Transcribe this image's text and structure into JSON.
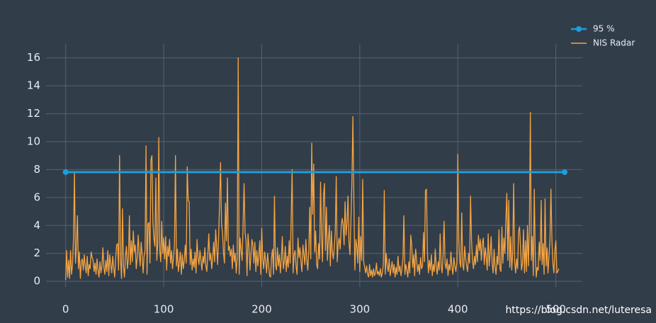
{
  "chart_data": {
    "type": "line",
    "annotation": "https://blog.csdn.net/luteresa",
    "xlim": [
      -20,
      527
    ],
    "xticks": [
      0,
      100,
      200,
      300,
      400,
      500
    ],
    "ylim": [
      -0.4,
      17
    ],
    "yticks": [
      0,
      2,
      4,
      6,
      8,
      10,
      12,
      14,
      16
    ],
    "grid": true,
    "legend": "top-right",
    "series": [
      {
        "name": "95 %",
        "color": "#1c9fdc",
        "markers": true,
        "x": [
          0,
          509
        ],
        "values": [
          7.815,
          7.815
        ]
      },
      {
        "name": "NIS Radar",
        "color": "#f4a441",
        "markers": false,
        "values": [
          0.1,
          2.2,
          0.3,
          1.5,
          0.2,
          2.2,
          0.5,
          1.2,
          3.1,
          7.8,
          1.3,
          2.5,
          4.7,
          0.9,
          2.1,
          0.2,
          1.4,
          1.6,
          0.8,
          1.9,
          1.1,
          0.6,
          1.8,
          0.4,
          1.2,
          0.9,
          2.1,
          1.7,
          1.5,
          0.7,
          1.3,
          0.5,
          1.6,
          0.8,
          0.3,
          1.4,
          0.6,
          1.1,
          2.4,
          1.0,
          0.5,
          1.5,
          0.7,
          2.2,
          0.4,
          1.9,
          1.2,
          0.6,
          1.8,
          1.0,
          0.3,
          1.6,
          2.6,
          2.7,
          0.8,
          9.0,
          1.5,
          0.2,
          5.2,
          1.1,
          0.3,
          1.8,
          2.5,
          0.9,
          1.6,
          4.7,
          1.2,
          2.9,
          1.4,
          3.6,
          2.1,
          2.6,
          0.9,
          1.7,
          3.3,
          2.0,
          1.1,
          2.8,
          1.9,
          0.6,
          1.8,
          2.2,
          9.7,
          0.5,
          4.1,
          4.2,
          1.3,
          8.7,
          9.0,
          4.2,
          3.1,
          2.5,
          7.4,
          1.5,
          2.8,
          10.3,
          2.2,
          1.4,
          4.3,
          2.0,
          3.1,
          1.6,
          3.2,
          0.8,
          2.5,
          1.8,
          3.0,
          1.3,
          2.2,
          0.9,
          1.7,
          2.6,
          9.0,
          1.1,
          2.3,
          0.7,
          1.4,
          2.1,
          0.5,
          1.9,
          0.9,
          1.5,
          2.6,
          1.3,
          8.2,
          5.8,
          5.7,
          1.2,
          2.3,
          0.8,
          1.6,
          1.0,
          2.1,
          0.6,
          3.0,
          1.7,
          1.2,
          2.2,
          1.5,
          0.8,
          1.8,
          1.3,
          2.4,
          1.1,
          0.7,
          1.9,
          3.4,
          1.5,
          2.0,
          0.9,
          1.7,
          2.8,
          1.4,
          3.7,
          2.5,
          1.2,
          3.2,
          5.5,
          8.5,
          4.1,
          3.5,
          2.0,
          1.3,
          5.6,
          2.9,
          7.4,
          2.2,
          2.5,
          1.8,
          2.3,
          0.9,
          2.6,
          1.4,
          2.0,
          0.6,
          1.7,
          16.0,
          0.5,
          3.1,
          2.2,
          1.5,
          4.1,
          7.0,
          3.5,
          2.9,
          0.4,
          3.4,
          2.4,
          0.8,
          1.9,
          3.0,
          2.6,
          1.3,
          2.8,
          0.7,
          2.2,
          1.1,
          1.8,
          2.9,
          0.5,
          3.8,
          1.6,
          0.9,
          2.1,
          1.4,
          0.6,
          2.0,
          1.2,
          0.4,
          0.3,
          1.7,
          2.3,
          0.5,
          6.1,
          1.2,
          0.8,
          2.4,
          1.1,
          1.9,
          0.6,
          1.6,
          3.2,
          0.9,
          1.4,
          2.5,
          0.7,
          1.8,
          1.0,
          2.9,
          1.3,
          4.5,
          8.0,
          0.6,
          1.9,
          2.2,
          1.1,
          0.5,
          3.1,
          1.7,
          2.4,
          1.4,
          0.7,
          2.6,
          1.9,
          1.2,
          3.0,
          1.5,
          0.8,
          2.2,
          5.3,
          1.6,
          9.9,
          4.8,
          8.4,
          2.1,
          3.6,
          1.2,
          0.9,
          2.7,
          1.6,
          7.1,
          3.2,
          1.4,
          6.1,
          7.0,
          2.2,
          5.3,
          1.5,
          3.0,
          4.0,
          1.1,
          3.6,
          2.1,
          1.6,
          2.4,
          3.5,
          7.5,
          1.4,
          2.7,
          3.1,
          2.3,
          3.8,
          4.5,
          4.1,
          2.6,
          5.7,
          3.3,
          4.2,
          6.1,
          2.8,
          1.9,
          4.4,
          7.2,
          11.8,
          5.6,
          0.8,
          3.0,
          2.5,
          1.3,
          4.6,
          0.7,
          3.2,
          1.5,
          7.3,
          1.4,
          1.0,
          0.6,
          1.1,
          0.5,
          0.3,
          1.2,
          0.4,
          0.8,
          0.3,
          0.9,
          0.4,
          0.6,
          1.3,
          0.5,
          0.7,
          0.4,
          0.9,
          0.3,
          0.6,
          1.2,
          6.5,
          0.5,
          2.0,
          1.1,
          0.7,
          1.6,
          0.4,
          0.9,
          1.4,
          0.6,
          1.2,
          0.3,
          1.0,
          0.5,
          1.8,
          0.7,
          1.1,
          0.4,
          0.9,
          1.6,
          4.7,
          0.5,
          1.2,
          0.8,
          0.3,
          1.4,
          0.6,
          3.3,
          2.6,
          1.0,
          1.9,
          0.4,
          2.3,
          1.5,
          0.7,
          1.2,
          0.5,
          1.7,
          0.9,
          1.1,
          3.5,
          1.4,
          6.5,
          6.6,
          2.1,
          0.6,
          1.5,
          0.8,
          1.9,
          0.4,
          1.2,
          0.7,
          2.3,
          1.0,
          0.5,
          1.4,
          0.8,
          3.4,
          1.1,
          0.6,
          1.9,
          4.3,
          1.3,
          0.9,
          1.6,
          0.4,
          1.2,
          0.8,
          2.1,
          1.0,
          0.5,
          1.7,
          1.1,
          0.7,
          1.3,
          9.1,
          3.0,
          1.4,
          1.0,
          4.9,
          1.2,
          0.8,
          2.5,
          1.6,
          1.1,
          0.7,
          2.0,
          1.3,
          6.1,
          2.9,
          1.5,
          0.9,
          1.8,
          1.2,
          2.6,
          1.4,
          3.3,
          2.2,
          3.0,
          1.5,
          2.7,
          3.1,
          1.2,
          2.4,
          1.7,
          0.8,
          3.4,
          1.1,
          2.0,
          3.2,
          1.3,
          0.6,
          2.3,
          1.0,
          0.5,
          1.8,
          1.2,
          3.7,
          0.9,
          0.7,
          3.9,
          1.3,
          3.1,
          2.0,
          4.4,
          6.3,
          1.5,
          5.8,
          1.0,
          3.2,
          0.8,
          2.1,
          7.0,
          1.4,
          0.6,
          1.6,
          0.9,
          3.6,
          3.9,
          2.4,
          0.8,
          1.3,
          3.7,
          0.6,
          2.9,
          0.7,
          4.0,
          1.1,
          3.8,
          12.1,
          1.5,
          3.2,
          0.4,
          6.6,
          1.9,
          0.3,
          1.0,
          0.8,
          2.8,
          1.5,
          5.8,
          1.2,
          2.7,
          0.5,
          5.9,
          1.1,
          2.4,
          0.6,
          1.8,
          3.0,
          6.6,
          2.9,
          1.3,
          0.6,
          2.2,
          2.9,
          0.6,
          0.7,
          0.9
        ]
      }
    ]
  }
}
